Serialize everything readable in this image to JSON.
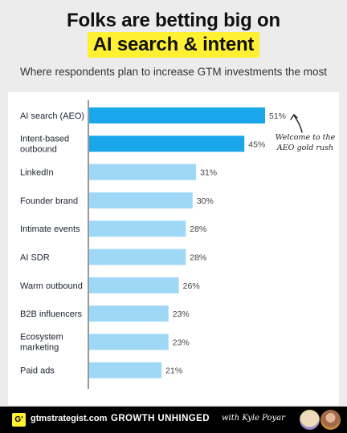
{
  "header": {
    "title_line1": "Folks are betting big on",
    "title_line2": "AI search & intent",
    "subtitle": "Where respondents plan to increase GTM investments the most",
    "highlight_color": "#fff033"
  },
  "chart_data": {
    "type": "bar",
    "orientation": "horizontal",
    "categories": [
      "AI search (AEO)",
      "Intent-based outbound",
      "LinkedIn",
      "Founder brand",
      "Intimate events",
      "AI SDR",
      "Warm outbound",
      "B2B influencers",
      "Ecosystem marketing",
      "Paid ads"
    ],
    "category_lines": [
      [
        "AI search (AEO)"
      ],
      [
        "Intent-based",
        "outbound"
      ],
      [
        "LinkedIn"
      ],
      [
        "Founder brand"
      ],
      [
        "Intimate events"
      ],
      [
        "AI SDR"
      ],
      [
        "Warm outbound"
      ],
      [
        "B2B influencers"
      ],
      [
        "Ecosystem",
        "marketing"
      ],
      [
        "Paid ads"
      ]
    ],
    "values": [
      51,
      45,
      31,
      30,
      28,
      28,
      26,
      23,
      23,
      21
    ],
    "value_labels": [
      "51%",
      "45%",
      "31%",
      "30%",
      "28%",
      "28%",
      "26%",
      "23%",
      "23%",
      "21%"
    ],
    "highlight_count": 2,
    "colors": {
      "highlight": "#1aa6ea",
      "default": "#9fd8f7"
    },
    "xlim": [
      0,
      51
    ],
    "grid": false,
    "title": "",
    "xlabel": "",
    "ylabel": ""
  },
  "annotation": {
    "line1": "Welcome to the",
    "line2": "AEO gold rush"
  },
  "footer": {
    "logo_text": "G'",
    "site": "gtmstrategist.com",
    "show": "GROWTH UNHINGED",
    "with": "with Kyle Poyar"
  }
}
